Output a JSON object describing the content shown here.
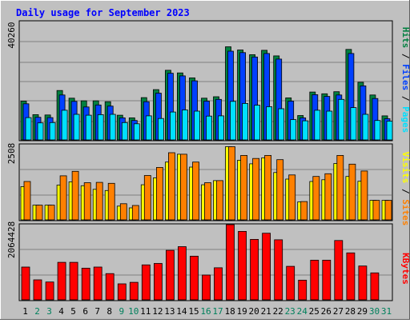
{
  "chart_data": [
    {
      "type": "bar",
      "title": "Daily usage for September 2023",
      "categories": [
        "1",
        "2",
        "3",
        "4",
        "5",
        "6",
        "7",
        "8",
        "9",
        "10",
        "11",
        "12",
        "13",
        "14",
        "15",
        "16",
        "17",
        "18",
        "19",
        "20",
        "21",
        "22",
        "23",
        "24",
        "25",
        "26",
        "27",
        "28",
        "29",
        "30",
        "31"
      ],
      "weekend_days": [
        "2",
        "3",
        "9",
        "10",
        "16",
        "17",
        "23",
        "24",
        "30",
        "31"
      ],
      "ymax_label": "40260",
      "ylim": [
        0,
        40260
      ],
      "right_labels": [
        "Hits",
        "Files",
        "Pages"
      ],
      "series": [
        {
          "name": "Hits",
          "color": "#008040",
          "values": [
            13200,
            8600,
            8500,
            16800,
            14200,
            13300,
            13300,
            13000,
            8400,
            7500,
            14400,
            17100,
            23700,
            22800,
            21100,
            14200,
            14700,
            31700,
            30600,
            29000,
            30500,
            28600,
            14300,
            8300,
            16300,
            15700,
            16400,
            30800,
            19600,
            15300,
            8200
          ]
        },
        {
          "name": "Files",
          "color": "#0040ff",
          "values": [
            12300,
            7700,
            7600,
            15300,
            13100,
            11200,
            11900,
            11500,
            7500,
            6600,
            13000,
            15900,
            22700,
            21800,
            20100,
            13200,
            13800,
            30200,
            29700,
            28200,
            29400,
            27500,
            13200,
            7500,
            15400,
            14800,
            15300,
            29400,
            18400,
            14100,
            7200
          ]
        },
        {
          "name": "Pages",
          "color": "#00e0ff",
          "values": [
            7600,
            5800,
            5900,
            10100,
            8700,
            8400,
            8600,
            8700,
            5900,
            5500,
            8200,
            7300,
            9500,
            10200,
            9800,
            8100,
            8200,
            13100,
            12400,
            11800,
            11300,
            10600,
            6900,
            6500,
            10100,
            9800,
            13800,
            11000,
            8700,
            6600,
            6400
          ]
        }
      ]
    },
    {
      "type": "bar",
      "ymax_label": "2508",
      "ylim": [
        0,
        2508
      ],
      "right_labels": [
        "Visits",
        "Sites"
      ],
      "series": [
        {
          "name": "Visits",
          "color": "#ffff00",
          "values": [
            1110,
            490,
            490,
            1160,
            1270,
            1140,
            1020,
            980,
            460,
            400,
            1170,
            1400,
            1930,
            2190,
            1760,
            1170,
            1310,
            2440,
            1990,
            1870,
            2070,
            1580,
            1360,
            600,
            1280,
            1340,
            1880,
            1450,
            1290,
            650,
            650
          ]
        },
        {
          "name": "Sites",
          "color": "#ff8000",
          "values": [
            1280,
            490,
            490,
            1470,
            1620,
            1240,
            1250,
            1220,
            540,
            480,
            1480,
            1750,
            2240,
            2190,
            1930,
            1240,
            1310,
            2440,
            2150,
            2050,
            2150,
            2010,
            1500,
            610,
            1450,
            1540,
            2150,
            1860,
            1630,
            650,
            650
          ]
        }
      ]
    },
    {
      "type": "bar",
      "ymax_label": "2064428",
      "ylim": [
        0,
        2064428
      ],
      "right_labels": [
        "KBytes"
      ],
      "series": [
        {
          "name": "KBytes",
          "color": "#ff0000",
          "values": [
            900000,
            550000,
            490000,
            1030000,
            1030000,
            870000,
            900000,
            720000,
            440000,
            480000,
            960000,
            1000000,
            1360000,
            1460000,
            1200000,
            680000,
            880000,
            2064428,
            1880000,
            1660000,
            1830000,
            1650000,
            920000,
            540000,
            1090000,
            1090000,
            1630000,
            1290000,
            930000,
            740000,
            0
          ]
        }
      ]
    }
  ],
  "colors": {
    "background": "#c0c0c0",
    "plot": "#c0c0c0",
    "weekday": "#000000",
    "weekend": "#00805c",
    "title": "#0000ff"
  }
}
